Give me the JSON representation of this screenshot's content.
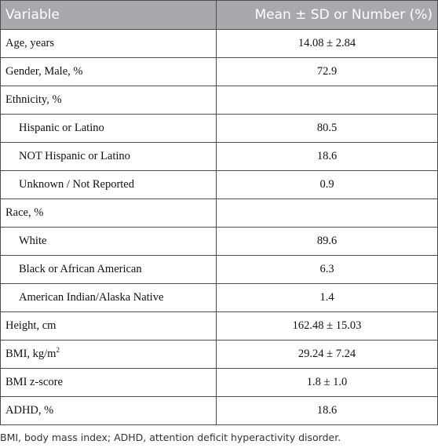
{
  "table": {
    "header": {
      "col1": "Variable",
      "col2": "Mean ± SD or Number (%)"
    },
    "rows": [
      {
        "label": "Age, years",
        "value": "14.08 ± 2.84"
      },
      {
        "label": "Gender, Male, %",
        "value": "72.9"
      },
      {
        "label": "Ethnicity, %",
        "value": ""
      },
      {
        "label": "Hispanic or Latino",
        "value": "80.5"
      },
      {
        "label": "NOT Hispanic or Latino",
        "value": "18.6"
      },
      {
        "label": "Unknown / Not Reported",
        "value": "0.9"
      },
      {
        "label": "Race, %",
        "value": ""
      },
      {
        "label": "White",
        "value": "89.6"
      },
      {
        "label": "Black or African American",
        "value": "6.3"
      },
      {
        "label": "American Indian/Alaska Native",
        "value": "1.4"
      },
      {
        "label": "Height, cm",
        "value": "162.48 ± 15.03"
      },
      {
        "label": "BMI, kg/m",
        "label_sup": "2",
        "value": "29.24 ± 7.24"
      },
      {
        "label": "BMI z-score",
        "value": "1.8 ± 1.0"
      },
      {
        "label": "ADHD, %",
        "value": "18.6"
      }
    ]
  },
  "footnote": "BMI, body mass index; ADHD, attention deficit hyperactivity disorder."
}
